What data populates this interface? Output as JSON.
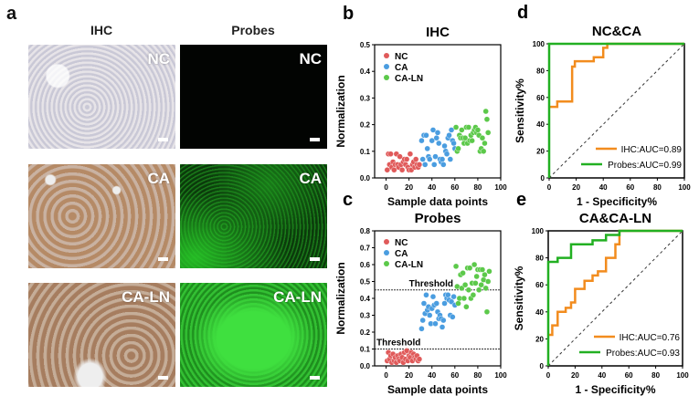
{
  "panel_a": {
    "label": "a",
    "col_titles": [
      "IHC",
      "Probes"
    ],
    "rows": [
      {
        "ihc_tag": "NC",
        "probe_tag": "NC"
      },
      {
        "ihc_tag": "CA",
        "probe_tag": "CA"
      },
      {
        "ihc_tag": "CA-LN",
        "probe_tag": "CA-LN"
      }
    ]
  },
  "colors": {
    "NC": "#e05a5a",
    "CA": "#4a9de0",
    "CA-LN": "#5cc94a",
    "IHC_line": "#f28c1e",
    "Probes_line": "#22b022"
  },
  "chart_data": [
    {
      "panel": "b",
      "type": "scatter",
      "title": "IHC",
      "xlabel": "Sample data points",
      "ylabel": "Normalization",
      "xlim": [
        -10,
        100
      ],
      "ylim": [
        0,
        0.5
      ],
      "xticks": [
        "0",
        "20",
        "40",
        "60",
        "80",
        "100"
      ],
      "yticks": [
        "0.0",
        "0.1",
        "0.2",
        "0.3",
        "0.4",
        "0.5"
      ],
      "legend": "top-left",
      "thresholds": [],
      "series": [
        {
          "name": "NC",
          "points": [
            [
              1,
              0.03
            ],
            [
              2,
              0.09
            ],
            [
              3,
              0.05
            ],
            [
              4,
              0.09
            ],
            [
              5,
              0.04
            ],
            [
              6,
              0.06
            ],
            [
              7,
              0.03
            ],
            [
              8,
              0.05
            ],
            [
              9,
              0.09
            ],
            [
              10,
              0.05
            ],
            [
              11,
              0.04
            ],
            [
              12,
              0.08
            ],
            [
              13,
              0.05
            ],
            [
              14,
              0.03
            ],
            [
              15,
              0.06
            ],
            [
              16,
              0.07
            ],
            [
              17,
              0.05
            ],
            [
              18,
              0.07
            ],
            [
              19,
              0.04
            ],
            [
              20,
              0.03
            ],
            [
              21,
              0.09
            ],
            [
              22,
              0.03
            ],
            [
              23,
              0.05
            ],
            [
              24,
              0.06
            ],
            [
              25,
              0.04
            ],
            [
              26,
              0.07
            ],
            [
              27,
              0.05
            ],
            [
              28,
              0.04
            ],
            [
              29,
              0.05
            ]
          ]
        },
        {
          "name": "CA",
          "points": [
            [
              31,
              0.14
            ],
            [
              32,
              0.07
            ],
            [
              33,
              0.16
            ],
            [
              34,
              0.05
            ],
            [
              35,
              0.16
            ],
            [
              36,
              0.11
            ],
            [
              37,
              0.08
            ],
            [
              38,
              0.07
            ],
            [
              40,
              0.14
            ],
            [
              41,
              0.18
            ],
            [
              42,
              0.05
            ],
            [
              43,
              0.08
            ],
            [
              44,
              0.15
            ],
            [
              45,
              0.17
            ],
            [
              46,
              0.13
            ],
            [
              47,
              0.07
            ],
            [
              48,
              0.06
            ],
            [
              49,
              0.07
            ],
            [
              50,
              0.05
            ],
            [
              51,
              0.12
            ],
            [
              52,
              0.1
            ],
            [
              53,
              0.09
            ],
            [
              54,
              0.15
            ],
            [
              55,
              0.16
            ],
            [
              56,
              0.07
            ],
            [
              57,
              0.18
            ],
            [
              58,
              0.14
            ],
            [
              59,
              0.13
            ],
            [
              60,
              0.11
            ]
          ]
        },
        {
          "name": "CA-LN",
          "points": [
            [
              61,
              0.19
            ],
            [
              62,
              0.1
            ],
            [
              63,
              0.11
            ],
            [
              64,
              0.16
            ],
            [
              65,
              0.15
            ],
            [
              66,
              0.18
            ],
            [
              67,
              0.15
            ],
            [
              68,
              0.13
            ],
            [
              69,
              0.15
            ],
            [
              70,
              0.19
            ],
            [
              71,
              0.13
            ],
            [
              72,
              0.19
            ],
            [
              73,
              0.14
            ],
            [
              74,
              0.16
            ],
            [
              75,
              0.14
            ],
            [
              76,
              0.17
            ],
            [
              77,
              0.18
            ],
            [
              78,
              0.19
            ],
            [
              79,
              0.17
            ],
            [
              80,
              0.18
            ],
            [
              81,
              0.16
            ],
            [
              82,
              0.1
            ],
            [
              83,
              0.11
            ],
            [
              84,
              0.15
            ],
            [
              85,
              0.1
            ],
            [
              86,
              0.13
            ],
            [
              87,
              0.25
            ],
            [
              88,
              0.22
            ],
            [
              89,
              0.17
            ]
          ]
        }
      ]
    },
    {
      "panel": "c",
      "type": "scatter",
      "title": "Probes",
      "xlabel": "Sample data points",
      "ylabel": "Normalization",
      "xlim": [
        -10,
        100
      ],
      "ylim": [
        0,
        0.8
      ],
      "xticks": [
        "0",
        "20",
        "40",
        "60",
        "80",
        "100"
      ],
      "yticks": [
        "0.0",
        "0.1",
        "0.2",
        "0.3",
        "0.4",
        "0.5",
        "0.6",
        "0.7",
        "0.8"
      ],
      "legend": "top-left",
      "thresholds": [
        {
          "value": 0.45,
          "label": "Threshold"
        },
        {
          "value": 0.1,
          "label": "Threshold"
        }
      ],
      "series": [
        {
          "name": "NC",
          "points": [
            [
              1,
              0.03
            ],
            [
              2,
              0.08
            ],
            [
              3,
              0.04
            ],
            [
              4,
              0.06
            ],
            [
              5,
              0.02
            ],
            [
              6,
              0.07
            ],
            [
              7,
              0.03
            ],
            [
              8,
              0.05
            ],
            [
              9,
              0.02
            ],
            [
              10,
              0.06
            ],
            [
              11,
              0.04
            ],
            [
              12,
              0.03
            ],
            [
              13,
              0.07
            ],
            [
              14,
              0.05
            ],
            [
              15,
              0.02
            ],
            [
              16,
              0.08
            ],
            [
              17,
              0.04
            ],
            [
              18,
              0.09
            ],
            [
              19,
              0.03
            ],
            [
              20,
              0.06
            ],
            [
              21,
              0.05
            ],
            [
              22,
              0.08
            ],
            [
              23,
              0.03
            ],
            [
              24,
              0.07
            ],
            [
              25,
              0.05
            ],
            [
              26,
              0.04
            ],
            [
              27,
              0.06
            ],
            [
              28,
              0.03
            ],
            [
              29,
              0.04
            ]
          ]
        },
        {
          "name": "CA",
          "points": [
            [
              31,
              0.22
            ],
            [
              32,
              0.27
            ],
            [
              33,
              0.37
            ],
            [
              34,
              0.31
            ],
            [
              35,
              0.42
            ],
            [
              36,
              0.33
            ],
            [
              37,
              0.35
            ],
            [
              38,
              0.3
            ],
            [
              39,
              0.25
            ],
            [
              40,
              0.34
            ],
            [
              41,
              0.41
            ],
            [
              42,
              0.36
            ],
            [
              43,
              0.25
            ],
            [
              44,
              0.37
            ],
            [
              45,
              0.32
            ],
            [
              46,
              0.28
            ],
            [
              47,
              0.3
            ],
            [
              48,
              0.28
            ],
            [
              49,
              0.23
            ],
            [
              50,
              0.27
            ],
            [
              51,
              0.37
            ],
            [
              52,
              0.42
            ],
            [
              53,
              0.4
            ],
            [
              54,
              0.42
            ],
            [
              55,
              0.39
            ],
            [
              56,
              0.3
            ],
            [
              57,
              0.38
            ],
            [
              58,
              0.29
            ],
            [
              59,
              0.41
            ],
            [
              60,
              0.36
            ]
          ]
        },
        {
          "name": "CA-LN",
          "points": [
            [
              61,
              0.59
            ],
            [
              62,
              0.47
            ],
            [
              63,
              0.37
            ],
            [
              64,
              0.4
            ],
            [
              65,
              0.54
            ],
            [
              66,
              0.46
            ],
            [
              67,
              0.55
            ],
            [
              68,
              0.4
            ],
            [
              69,
              0.48
            ],
            [
              70,
              0.35
            ],
            [
              71,
              0.58
            ],
            [
              72,
              0.45
            ],
            [
              73,
              0.58
            ],
            [
              74,
              0.4
            ],
            [
              75,
              0.49
            ],
            [
              76,
              0.42
            ],
            [
              77,
              0.6
            ],
            [
              78,
              0.49
            ],
            [
              79,
              0.53
            ],
            [
              80,
              0.57
            ],
            [
              81,
              0.45
            ],
            [
              82,
              0.57
            ],
            [
              83,
              0.48
            ],
            [
              84,
              0.57
            ],
            [
              85,
              0.51
            ],
            [
              86,
              0.54
            ],
            [
              87,
              0.46
            ],
            [
              88,
              0.32
            ],
            [
              89,
              0.5
            ],
            [
              90,
              0.56
            ]
          ]
        }
      ]
    },
    {
      "panel": "d",
      "type": "line",
      "title": "NC&CA",
      "xlabel": "1 - Specificity%",
      "ylabel": "Sensitivity%",
      "xlim": [
        0,
        100
      ],
      "ylim": [
        0,
        100
      ],
      "xticks": [
        "0",
        "20",
        "40",
        "60",
        "80",
        "100"
      ],
      "yticks": [
        "0",
        "20",
        "40",
        "60",
        "80",
        "100"
      ],
      "legend": "bottom-right",
      "series": [
        {
          "name": "IHC",
          "label": "IHC:AUC=0.89",
          "auc": 0.89,
          "points": [
            [
              0,
              53
            ],
            [
              6,
              53
            ],
            [
              6,
              57
            ],
            [
              17,
              57
            ],
            [
              17,
              83
            ],
            [
              19,
              83
            ],
            [
              19,
              87
            ],
            [
              33,
              87
            ],
            [
              33,
              90
            ],
            [
              40,
              90
            ],
            [
              40,
              97
            ],
            [
              43,
              97
            ],
            [
              43,
              100
            ],
            [
              100,
              100
            ]
          ]
        },
        {
          "name": "Probes",
          "label": "Probes:AUC=0.99",
          "auc": 0.99,
          "points": [
            [
              0,
              0
            ],
            [
              0,
              100
            ],
            [
              100,
              100
            ]
          ]
        }
      ]
    },
    {
      "panel": "e",
      "type": "line",
      "title": "CA&CA-LN",
      "xlabel": "1 - Specificity%",
      "ylabel": "Sensitivity%",
      "xlim": [
        0,
        100
      ],
      "ylim": [
        0,
        100
      ],
      "xticks": [
        "0",
        "20",
        "40",
        "60",
        "80",
        "100"
      ],
      "yticks": [
        "0",
        "20",
        "40",
        "60",
        "80",
        "100"
      ],
      "legend": "bottom-right",
      "series": [
        {
          "name": "IHC",
          "label": "IHC:AUC=0.76",
          "auc": 0.76,
          "points": [
            [
              0,
              23
            ],
            [
              3,
              23
            ],
            [
              3,
              30
            ],
            [
              7,
              30
            ],
            [
              7,
              40
            ],
            [
              13,
              40
            ],
            [
              13,
              43
            ],
            [
              17,
              43
            ],
            [
              17,
              47
            ],
            [
              20,
              47
            ],
            [
              20,
              57
            ],
            [
              27,
              57
            ],
            [
              27,
              63
            ],
            [
              33,
              63
            ],
            [
              33,
              67
            ],
            [
              37,
              67
            ],
            [
              37,
              70
            ],
            [
              43,
              70
            ],
            [
              43,
              80
            ],
            [
              50,
              80
            ],
            [
              50,
              90
            ],
            [
              53,
              90
            ],
            [
              53,
              100
            ],
            [
              100,
              100
            ]
          ]
        },
        {
          "name": "Probes",
          "label": "Probes:AUC=0.93",
          "auc": 0.93,
          "points": [
            [
              0,
              0
            ],
            [
              0,
              77
            ],
            [
              7,
              77
            ],
            [
              7,
              80
            ],
            [
              17,
              80
            ],
            [
              17,
              90
            ],
            [
              33,
              90
            ],
            [
              33,
              93
            ],
            [
              43,
              93
            ],
            [
              43,
              97
            ],
            [
              53,
              97
            ],
            [
              53,
              100
            ],
            [
              100,
              100
            ]
          ]
        }
      ]
    }
  ]
}
